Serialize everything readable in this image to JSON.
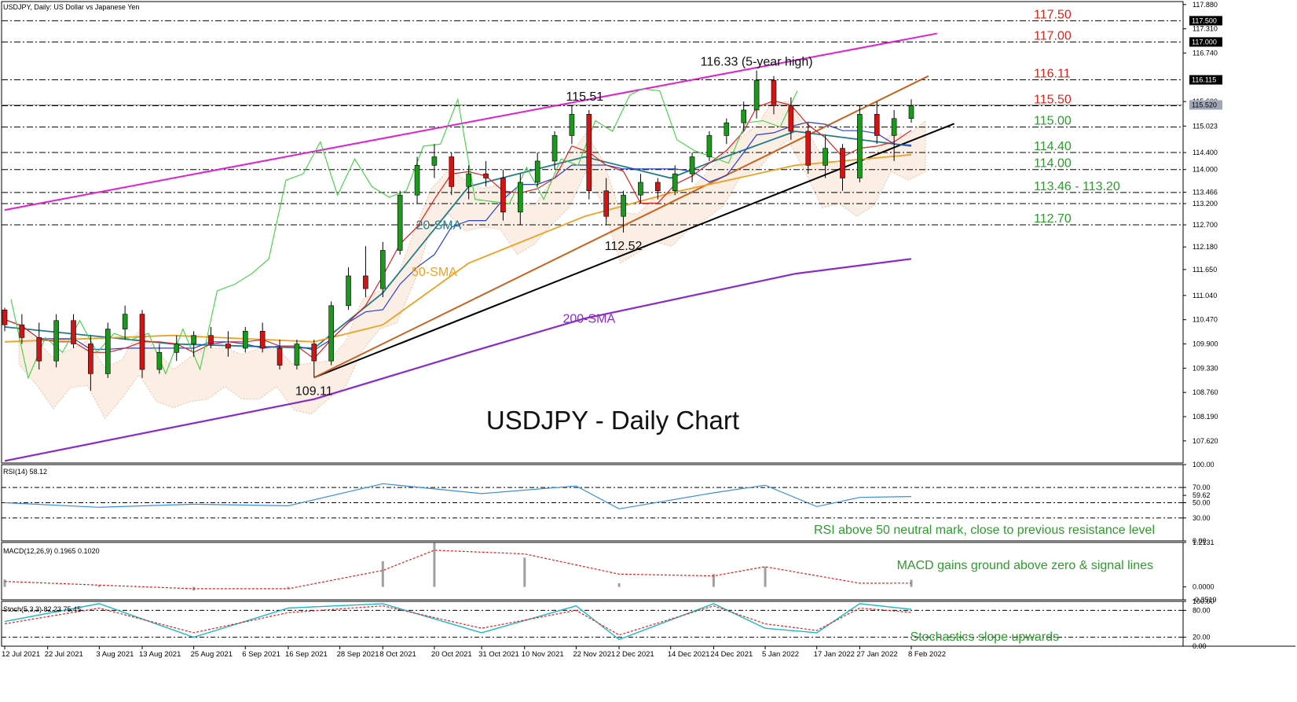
{
  "header": {
    "main_title": "USDJPY, Daily:  US Dollar vs Japanese Yen",
    "rsi_title": "RSI(14) 58.12",
    "macd_title": "MACD(12,26,9) 0.1965 0.1020",
    "stoch_title": "Stoch(5,3,3) 82.23 75.45"
  },
  "chart_title": "USDJPY - Daily Chart",
  "colors": {
    "candle_up": "#1a9a1a",
    "candle_down": "#d21414",
    "resistance_label": "#e0241b",
    "support_label": "#2e9b2e",
    "sma20": "#1f7c8c",
    "sma50": "#f0a020",
    "sma200": "#8a2bc7",
    "channel_upper": "#e020d0",
    "trend_lower": "#000000",
    "trend_upper": "#c8621e",
    "kijun": "#2a40d0",
    "tenkan": "#e02020",
    "chikou": "#40d040",
    "cloud": "#e8a070",
    "rsi": "#3a8ee0",
    "macd_signal": "#e02020",
    "stoch_main": "#1ab8c8",
    "stoch_signal": "#e02020"
  },
  "chart_data": [
    {
      "type": "line",
      "pane": "price",
      "title": "USDJPY - Daily Chart",
      "ylim": [
        107.1,
        117.95
      ],
      "y_ticks": [
        "117.880",
        "117.310",
        "116.740",
        "115.600",
        "115.023",
        "114.400",
        "114.000",
        "113.466",
        "113.200",
        "112.700",
        "112.180",
        "111.650",
        "111.040",
        "110.470",
        "109.900",
        "109.330",
        "108.760",
        "108.190",
        "107.620"
      ],
      "x_labels": [
        "12 Jul 2021",
        "22 Jul 2021",
        "3 Aug 2021",
        "13 Aug 2021",
        "25 Aug 2021",
        "6 Sep 2021",
        "16 Sep 2021",
        "28 Sep 2021",
        "8 Oct 2021",
        "20 Oct 2021",
        "31 Oct 2021",
        "10 Nov 2021",
        "22 Nov 2021",
        "2 Dec 2021",
        "14 Dec 2021",
        "24 Dec 2021",
        "5 Jan 2022",
        "17 Jan 2022",
        "27 Jan 2022",
        "8 Feb 2022"
      ],
      "current_price": 115.52,
      "levels": [
        {
          "value": 117.5,
          "label": "117.50",
          "kind": "resistance",
          "axis_label": "117.500"
        },
        {
          "value": 117.0,
          "label": "117.00",
          "kind": "resistance",
          "axis_label": "117.000"
        },
        {
          "value": 116.11,
          "label": "116.11",
          "kind": "resistance",
          "axis_label": "116.115"
        },
        {
          "value": 115.5,
          "label": "115.50",
          "kind": "resistance",
          "axis_label": ""
        },
        {
          "value": 115.0,
          "label": "115.00",
          "kind": "support",
          "axis_label": ""
        },
        {
          "value": 114.4,
          "label": "114.40",
          "kind": "support",
          "axis_label": ""
        },
        {
          "value": 114.0,
          "label": "114.00",
          "kind": "support",
          "axis_label": ""
        },
        {
          "value": 113.46,
          "label": "113.46 - 113.20",
          "kind": "support",
          "axis_label": ""
        },
        {
          "value": 113.2,
          "label": "",
          "kind": "support",
          "axis_label": ""
        },
        {
          "value": 112.7,
          "label": "112.70",
          "kind": "support",
          "axis_label": ""
        }
      ],
      "annotations": [
        {
          "text": "116.33 (5-year high)",
          "date": "3 Jan 2022",
          "value": 116.33
        },
        {
          "text": "115.51",
          "date": "24 Nov 2021",
          "value": 115.51
        },
        {
          "text": "112.52",
          "date": "3 Dec 2021",
          "value": 112.52
        },
        {
          "text": "109.11",
          "date": "22 Sep 2021",
          "value": 109.11
        },
        {
          "text": "20-SMA",
          "date": "21 Oct 2021",
          "value": 112.6
        },
        {
          "text": "50-SMA",
          "date": "20 Oct 2021",
          "value": 111.5
        },
        {
          "text": "200-SMA",
          "date": "25 Nov 2021",
          "value": 110.4
        }
      ],
      "series": [
        {
          "name": "20-SMA",
          "x": [
            "12 Jul 2021",
            "20 Aug 2021",
            "22 Sep 2021",
            "8 Oct 2021",
            "28 Oct 2021",
            "24 Nov 2021",
            "14 Dec 2021",
            "24 Dec 2021",
            "12 Jan 2022",
            "8 Feb 2022"
          ],
          "values": [
            110.3,
            109.9,
            109.8,
            111.1,
            113.6,
            114.3,
            113.8,
            114.2,
            114.9,
            114.55
          ]
        },
        {
          "name": "50-SMA",
          "x": [
            "12 Jul 2021",
            "20 Aug 2021",
            "22 Sep 2021",
            "8 Oct 2021",
            "28 Oct 2021",
            "24 Nov 2021",
            "14 Dec 2021",
            "12 Jan 2022",
            "8 Feb 2022"
          ],
          "values": [
            109.95,
            110.1,
            109.95,
            110.35,
            111.8,
            112.9,
            113.45,
            114.1,
            114.35
          ]
        },
        {
          "name": "200-SMA",
          "x": [
            "12 Jul 2021",
            "22 Sep 2021",
            "28 Oct 2021",
            "24 Nov 2021",
            "12 Jan 2022",
            "8 Feb 2022"
          ],
          "values": [
            107.15,
            108.6,
            109.7,
            110.5,
            111.55,
            111.9
          ]
        }
      ],
      "trendlines": [
        {
          "name": "rising channel top",
          "from": {
            "date": "12 Jul 2021",
            "value": 113.05
          },
          "to": {
            "date": "14 Feb 2022",
            "value": 117.2
          }
        },
        {
          "name": "support trendline",
          "from": {
            "date": "22 Sep 2021",
            "value": 109.11
          },
          "to": {
            "date": "18 Feb 2022",
            "value": 115.08
          }
        },
        {
          "name": "orange trendline",
          "from": {
            "date": "22 Sep 2021",
            "value": 109.11
          },
          "to": {
            "date": "12 Feb 2022",
            "value": 116.2
          }
        }
      ],
      "candles": [
        {
          "date": "12 Jul 2021",
          "o": 110.7,
          "h": 110.75,
          "l": 110.2,
          "c": 110.35
        },
        {
          "date": "16 Jul 2021",
          "o": 110.35,
          "h": 110.6,
          "l": 109.9,
          "c": 110.05
        },
        {
          "date": "20 Jul 2021",
          "o": 110.05,
          "h": 110.4,
          "l": 109.3,
          "c": 109.5
        },
        {
          "date": "24 Jul 2021",
          "o": 109.5,
          "h": 110.6,
          "l": 109.35,
          "c": 110.45
        },
        {
          "date": "28 Jul 2021",
          "o": 110.45,
          "h": 110.6,
          "l": 109.8,
          "c": 109.9
        },
        {
          "date": "1 Aug 2021",
          "o": 109.9,
          "h": 110.1,
          "l": 108.8,
          "c": 109.2
        },
        {
          "date": "5 Aug 2021",
          "o": 109.2,
          "h": 110.4,
          "l": 109.1,
          "c": 110.25
        },
        {
          "date": "9 Aug 2021",
          "o": 110.25,
          "h": 110.8,
          "l": 110.0,
          "c": 110.6
        },
        {
          "date": "13 Aug 2021",
          "o": 110.6,
          "h": 110.7,
          "l": 109.1,
          "c": 109.3
        },
        {
          "date": "17 Aug 2021",
          "o": 109.3,
          "h": 109.9,
          "l": 109.2,
          "c": 109.7
        },
        {
          "date": "21 Aug 2021",
          "o": 109.7,
          "h": 110.1,
          "l": 109.5,
          "c": 109.9
        },
        {
          "date": "25 Aug 2021",
          "o": 109.9,
          "h": 110.2,
          "l": 109.6,
          "c": 110.1
        },
        {
          "date": "29 Aug 2021",
          "o": 110.1,
          "h": 110.3,
          "l": 109.8,
          "c": 109.9
        },
        {
          "date": "2 Sep 2021",
          "o": 109.9,
          "h": 110.2,
          "l": 109.6,
          "c": 109.8
        },
        {
          "date": "6 Sep 2021",
          "o": 109.8,
          "h": 110.3,
          "l": 109.7,
          "c": 110.2
        },
        {
          "date": "10 Sep 2021",
          "o": 110.2,
          "h": 110.4,
          "l": 109.7,
          "c": 109.8
        },
        {
          "date": "14 Sep 2021",
          "o": 109.8,
          "h": 110.0,
          "l": 109.3,
          "c": 109.4
        },
        {
          "date": "18 Sep 2021",
          "o": 109.4,
          "h": 110.0,
          "l": 109.3,
          "c": 109.9
        },
        {
          "date": "22 Sep 2021",
          "o": 109.9,
          "h": 110.0,
          "l": 109.11,
          "c": 109.5
        },
        {
          "date": "26 Sep 2021",
          "o": 109.5,
          "h": 110.9,
          "l": 109.4,
          "c": 110.8
        },
        {
          "date": "30 Sep 2021",
          "o": 110.8,
          "h": 111.7,
          "l": 110.7,
          "c": 111.5
        },
        {
          "date": "4 Oct 2021",
          "o": 111.5,
          "h": 112.2,
          "l": 111.0,
          "c": 111.2
        },
        {
          "date": "8 Oct 2021",
          "o": 111.2,
          "h": 112.3,
          "l": 111.0,
          "c": 112.1
        },
        {
          "date": "12 Oct 2021",
          "o": 112.1,
          "h": 113.5,
          "l": 112.0,
          "c": 113.4
        },
        {
          "date": "16 Oct 2021",
          "o": 113.4,
          "h": 114.3,
          "l": 113.2,
          "c": 114.1
        },
        {
          "date": "20 Oct 2021",
          "o": 114.1,
          "h": 114.6,
          "l": 113.8,
          "c": 114.3
        },
        {
          "date": "24 Oct 2021",
          "o": 114.3,
          "h": 114.4,
          "l": 113.4,
          "c": 113.6
        },
        {
          "date": "28 Oct 2021",
          "o": 113.6,
          "h": 114.1,
          "l": 113.3,
          "c": 113.9
        },
        {
          "date": "1 Nov 2021",
          "o": 113.9,
          "h": 114.2,
          "l": 113.6,
          "c": 113.8
        },
        {
          "date": "5 Nov 2021",
          "o": 113.8,
          "h": 114.0,
          "l": 112.8,
          "c": 113.0
        },
        {
          "date": "9 Nov 2021",
          "o": 113.0,
          "h": 113.9,
          "l": 112.7,
          "c": 113.7
        },
        {
          "date": "13 Nov 2021",
          "o": 113.7,
          "h": 114.4,
          "l": 113.6,
          "c": 114.2
        },
        {
          "date": "17 Nov 2021",
          "o": 114.2,
          "h": 114.9,
          "l": 114.0,
          "c": 114.8
        },
        {
          "date": "21 Nov 2021",
          "o": 114.8,
          "h": 115.51,
          "l": 114.6,
          "c": 115.3
        },
        {
          "date": "25 Nov 2021",
          "o": 115.3,
          "h": 115.4,
          "l": 113.3,
          "c": 113.5
        },
        {
          "date": "29 Nov 2021",
          "o": 113.5,
          "h": 113.8,
          "l": 112.7,
          "c": 112.9
        },
        {
          "date": "3 Dec 2021",
          "o": 112.9,
          "h": 113.5,
          "l": 112.52,
          "c": 113.4
        },
        {
          "date": "7 Dec 2021",
          "o": 113.4,
          "h": 113.9,
          "l": 113.2,
          "c": 113.7
        },
        {
          "date": "11 Dec 2021",
          "o": 113.7,
          "h": 113.8,
          "l": 113.3,
          "c": 113.5
        },
        {
          "date": "15 Dec 2021",
          "o": 113.5,
          "h": 114.1,
          "l": 113.4,
          "c": 113.9
        },
        {
          "date": "19 Dec 2021",
          "o": 113.9,
          "h": 114.4,
          "l": 113.7,
          "c": 114.3
        },
        {
          "date": "23 Dec 2021",
          "o": 114.3,
          "h": 114.9,
          "l": 114.2,
          "c": 114.8
        },
        {
          "date": "27 Dec 2021",
          "o": 114.8,
          "h": 115.2,
          "l": 114.6,
          "c": 115.1
        },
        {
          "date": "31 Dec 2021",
          "o": 115.1,
          "h": 115.6,
          "l": 114.9,
          "c": 115.4
        },
        {
          "date": "3 Jan 2022",
          "o": 115.4,
          "h": 116.33,
          "l": 115.2,
          "c": 116.1
        },
        {
          "date": "7 Jan 2022",
          "o": 116.1,
          "h": 116.2,
          "l": 115.3,
          "c": 115.5
        },
        {
          "date": "11 Jan 2022",
          "o": 115.5,
          "h": 115.7,
          "l": 114.7,
          "c": 114.9
        },
        {
          "date": "15 Jan 2022",
          "o": 114.9,
          "h": 115.1,
          "l": 113.9,
          "c": 114.1
        },
        {
          "date": "19 Jan 2022",
          "o": 114.1,
          "h": 114.8,
          "l": 113.8,
          "c": 114.5
        },
        {
          "date": "23 Jan 2022",
          "o": 114.5,
          "h": 114.6,
          "l": 113.5,
          "c": 113.8
        },
        {
          "date": "27 Jan 2022",
          "o": 113.8,
          "h": 115.5,
          "l": 113.7,
          "c": 115.3
        },
        {
          "date": "31 Jan 2022",
          "o": 115.3,
          "h": 115.6,
          "l": 114.6,
          "c": 114.8
        },
        {
          "date": "4 Feb 2022",
          "o": 114.8,
          "h": 115.4,
          "l": 114.2,
          "c": 115.2
        },
        {
          "date": "8 Feb 2022",
          "o": 115.2,
          "h": 115.65,
          "l": 115.1,
          "c": 115.5
        }
      ]
    },
    {
      "type": "line",
      "pane": "rsi",
      "title": "RSI(14) 58.12",
      "ylim": [
        0,
        100
      ],
      "y_ticks": [
        "100.00",
        "70.00",
        "59.62",
        "50.00",
        "30.00",
        "0.00"
      ],
      "levels": [
        70,
        50,
        30
      ],
      "annotation": "RSI above 50 neutral mark, close to previous resistance level",
      "x": [
        "12 Jul 2021",
        "3 Aug 2021",
        "25 Aug 2021",
        "16 Sep 2021",
        "8 Oct 2021",
        "31 Oct 2021",
        "22 Nov 2021",
        "2 Dec 2021",
        "24 Dec 2021",
        "5 Jan 2022",
        "17 Jan 2022",
        "27 Jan 2022",
        "8 Feb 2022"
      ],
      "values": [
        50,
        44,
        48,
        46,
        75,
        62,
        72,
        42,
        63,
        73,
        45,
        57,
        58.12
      ]
    },
    {
      "type": "bar",
      "pane": "macd",
      "title": "MACD(12,26,9) 0.1965 0.1020",
      "ylim": [
        -0.3519,
        1.2131
      ],
      "y_ticks": [
        "1.2131",
        "0.0000",
        "-0.3519"
      ],
      "annotation": "MACD gains ground above zero & signal lines",
      "x": [
        "12 Jul 2021",
        "3 Aug 2021",
        "25 Aug 2021",
        "16 Sep 2021",
        "8 Oct 2021",
        "20 Oct 2021",
        "10 Nov 2021",
        "2 Dec 2021",
        "24 Dec 2021",
        "5 Jan 2022",
        "27 Jan 2022",
        "8 Feb 2022"
      ],
      "values": [
        0.2,
        0.05,
        -0.1,
        -0.05,
        0.7,
        1.2,
        0.8,
        0.1,
        0.35,
        0.55,
        0.0,
        0.1965
      ],
      "signal": [
        0.15,
        0.05,
        -0.05,
        -0.05,
        0.45,
        1.0,
        0.9,
        0.35,
        0.3,
        0.55,
        0.1,
        0.102
      ]
    },
    {
      "type": "line",
      "pane": "stochastic",
      "title": "Stoch(5,3,3) 82.23 75.45",
      "ylim": [
        0,
        100
      ],
      "y_ticks": [
        "100.00",
        "80.00",
        "20.00",
        "0.00"
      ],
      "annotation": "Stochastics slope upwards",
      "x": [
        "12 Jul 2021",
        "3 Aug 2021",
        "25 Aug 2021",
        "16 Sep 2021",
        "8 Oct 2021",
        "31 Oct 2021",
        "22 Nov 2021",
        "2 Dec 2021",
        "24 Dec 2021",
        "5 Jan 2022",
        "17 Jan 2022",
        "27 Jan 2022",
        "8 Feb 2022"
      ],
      "values": [
        55,
        95,
        20,
        85,
        95,
        30,
        90,
        15,
        95,
        40,
        30,
        95,
        82.23
      ],
      "signal": [
        50,
        85,
        30,
        75,
        90,
        40,
        80,
        25,
        90,
        50,
        35,
        85,
        75.45
      ]
    }
  ]
}
